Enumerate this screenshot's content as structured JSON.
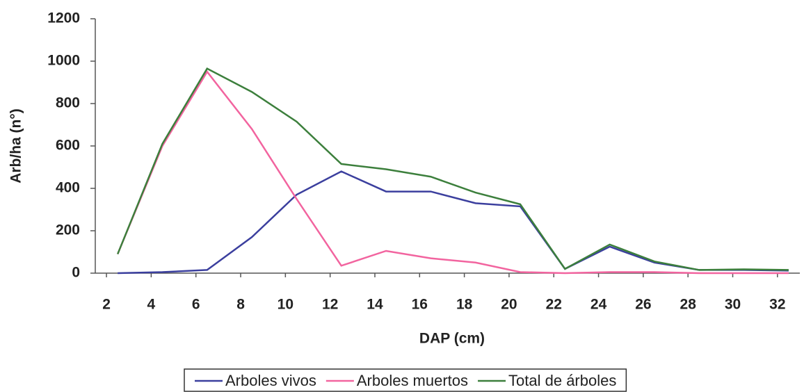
{
  "chart_data": {
    "type": "line",
    "x_label": "DAP (cm)",
    "y_label": "Arb/ha (n°)",
    "x": [
      2.5,
      4.5,
      6.5,
      8.5,
      10.5,
      12.5,
      14.5,
      16.5,
      18.5,
      20.5,
      22.5,
      24.5,
      26.5,
      28.5,
      30.5,
      32.5
    ],
    "series": [
      {
        "name": "Arboles vivos",
        "color": "#3b3f9e",
        "values": [
          0,
          5,
          15,
          170,
          370,
          480,
          385,
          385,
          330,
          315,
          20,
          125,
          50,
          15,
          15,
          12
        ]
      },
      {
        "name": "Arboles muertos",
        "color": "#f2649f",
        "values": [
          90,
          600,
          950,
          680,
          350,
          35,
          105,
          70,
          50,
          5,
          0,
          5,
          5,
          0,
          0,
          0
        ]
      },
      {
        "name": "Total de árboles",
        "color": "#3c7f3c",
        "values": [
          90,
          610,
          965,
          855,
          715,
          515,
          490,
          455,
          380,
          325,
          20,
          135,
          55,
          15,
          18,
          15
        ]
      }
    ],
    "xlim": [
      1.5,
      33
    ],
    "xticks": [
      2,
      4,
      6,
      8,
      10,
      12,
      14,
      16,
      18,
      20,
      22,
      24,
      26,
      28,
      30,
      32
    ],
    "ylim": [
      0,
      1200
    ],
    "yticks": [
      0,
      200,
      400,
      600,
      800,
      1000,
      1200
    ],
    "legend": "bottom"
  }
}
